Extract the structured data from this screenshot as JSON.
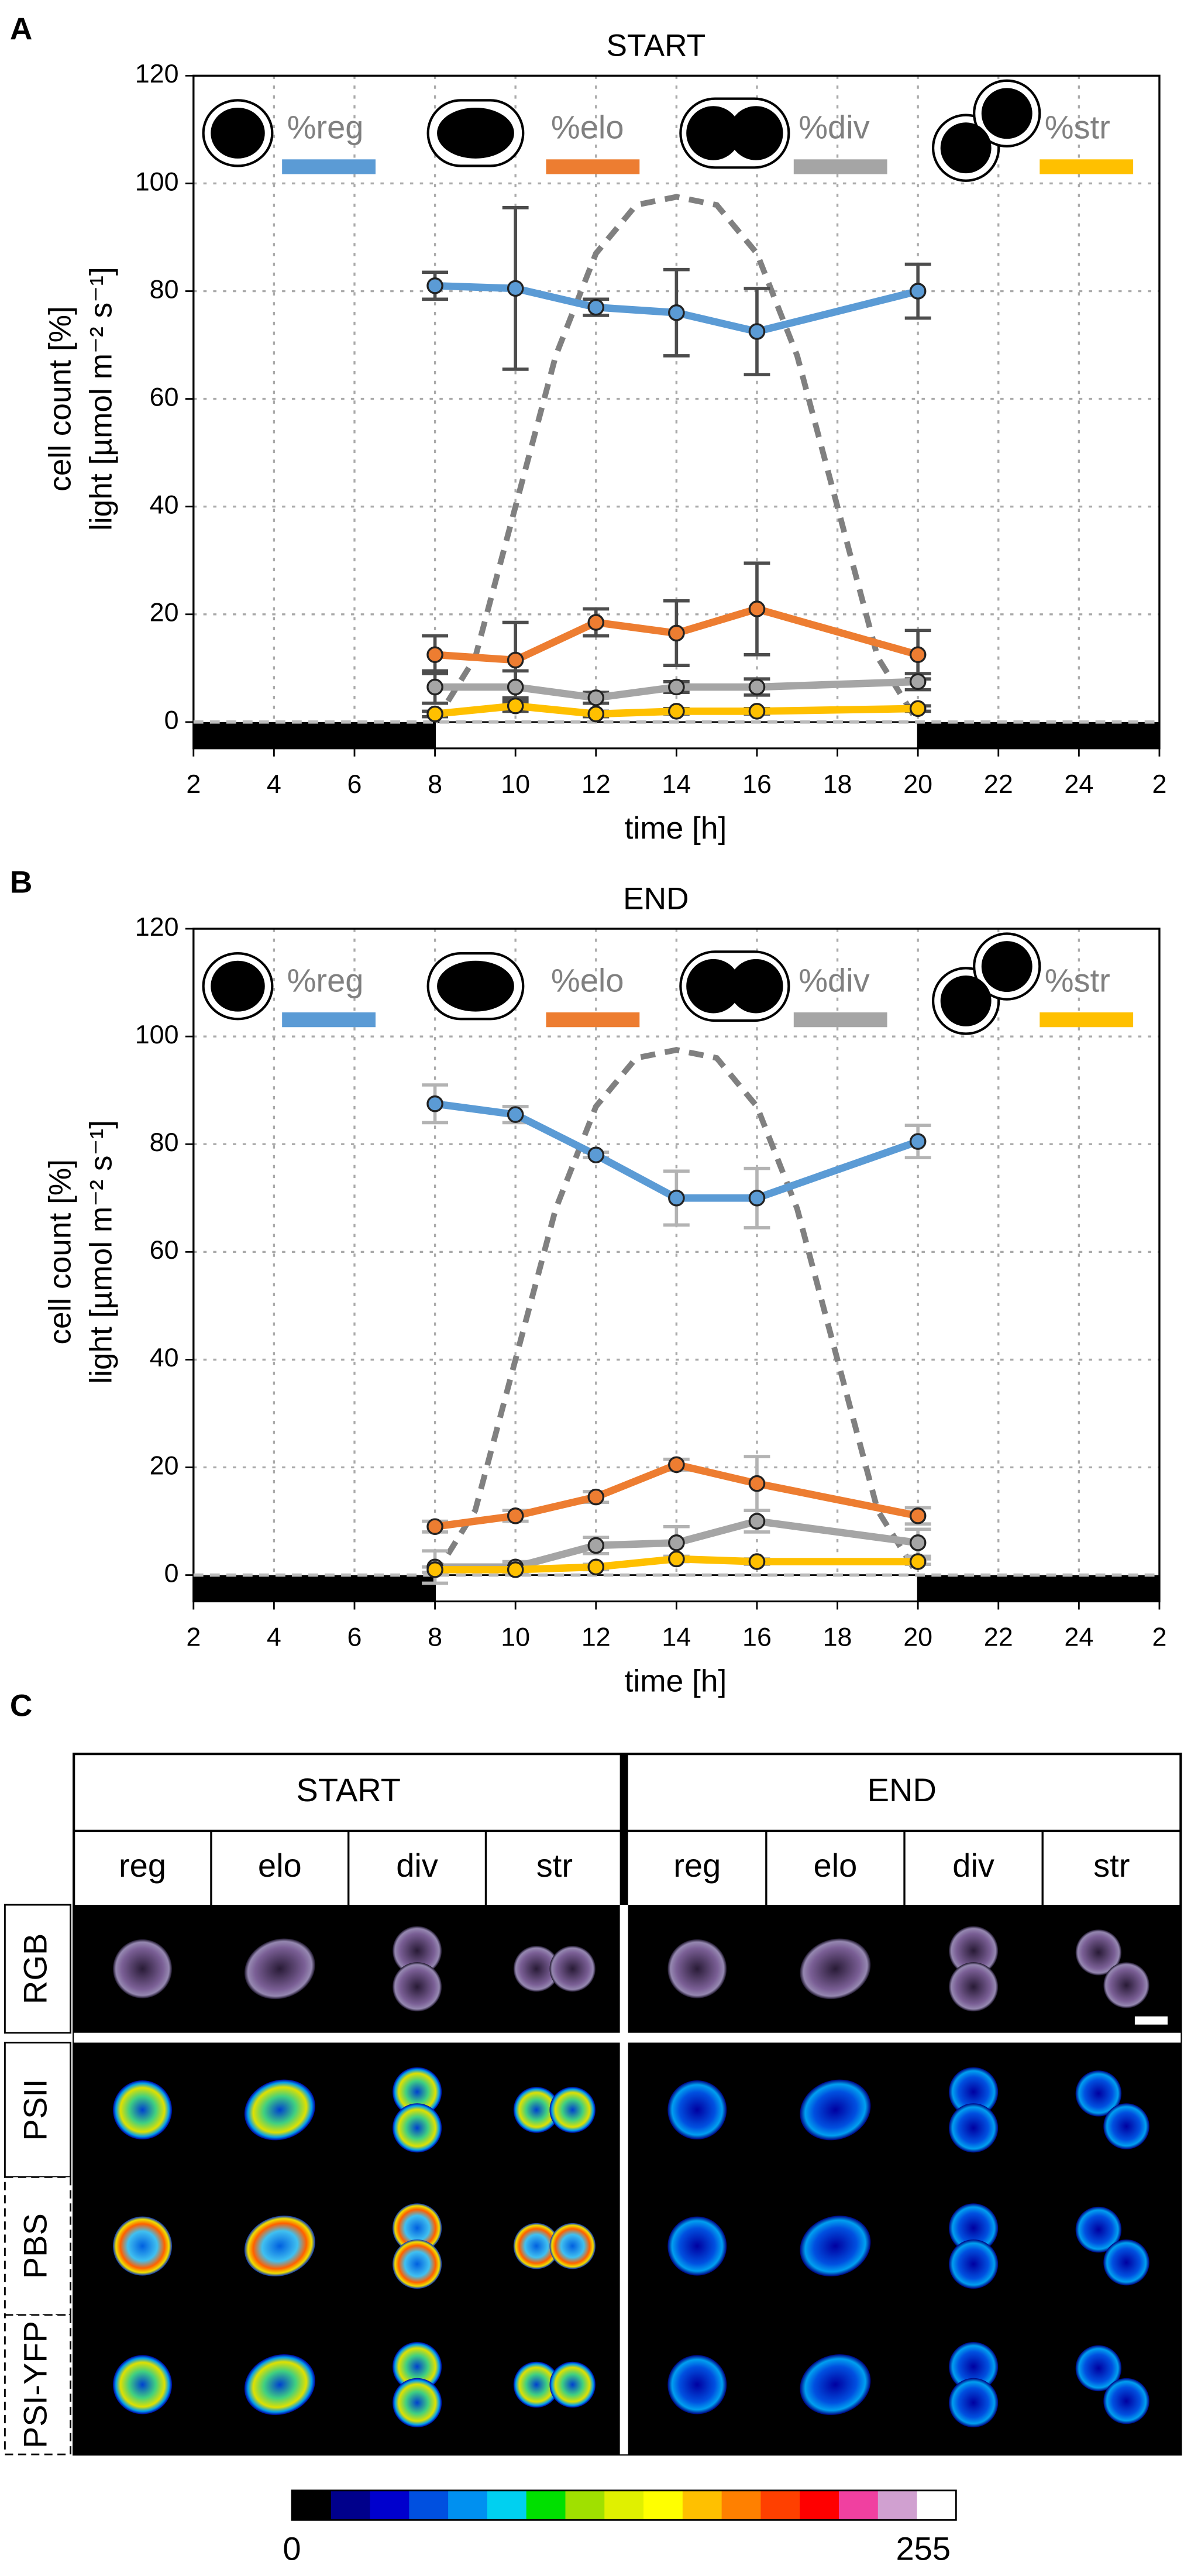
{
  "chart_data": [
    {
      "type": "line",
      "panel": "A",
      "title": "START",
      "xlabel": "time [h]",
      "ylabel": [
        "cell count [%]",
        "light [µmol m⁻² s⁻¹]"
      ],
      "xlim": [
        2,
        26
      ],
      "ylim": [
        0,
        120
      ],
      "xticks": [
        2,
        4,
        6,
        8,
        10,
        12,
        14,
        16,
        18,
        20,
        22,
        24,
        {
          "value": 26,
          "label": "2"
        }
      ],
      "yticks": [
        0,
        20,
        40,
        60,
        80,
        100,
        120
      ],
      "grid": true,
      "light_period": [
        8,
        20
      ],
      "errorbar_color": "#4d4d4d",
      "x": [
        8,
        10,
        12,
        14,
        16,
        20
      ],
      "series": [
        {
          "name": "%reg",
          "color": "#5b9bd5",
          "values": [
            81,
            80.5,
            77,
            76,
            72.5,
            80
          ],
          "errors": [
            2.5,
            15,
            1.5,
            8,
            8,
            5
          ]
        },
        {
          "name": "%elo",
          "color": "#ed7d31",
          "values": [
            12.5,
            11.5,
            18.5,
            16.5,
            21,
            12.5
          ],
          "errors": [
            3.5,
            7,
            2.5,
            6,
            8.5,
            4.5
          ]
        },
        {
          "name": "%div",
          "color": "#a5a5a5",
          "values": [
            6.5,
            6.5,
            4.5,
            6.5,
            6.5,
            7.5
          ],
          "errors": [
            3,
            3,
            1,
            1,
            1.5,
            1.5
          ]
        },
        {
          "name": "%str",
          "color": "#ffc000",
          "values": [
            1.5,
            3,
            1.5,
            2,
            2,
            2.5
          ],
          "errors": [
            0.5,
            1,
            0.5,
            0.5,
            0.5,
            0.5
          ]
        }
      ],
      "light": {
        "color": "#808080",
        "x": [
          8,
          9,
          10,
          11,
          12,
          13,
          14,
          15,
          16,
          17,
          18,
          19,
          20
        ],
        "values": [
          0,
          12,
          40,
          68,
          87,
          96,
          97.5,
          96,
          87,
          68,
          40,
          12,
          0
        ]
      }
    },
    {
      "type": "line",
      "panel": "B",
      "title": "END",
      "xlabel": "time [h]",
      "ylabel": [
        "cell count [%]",
        "light [µmol m⁻² s⁻¹]"
      ],
      "xlim": [
        2,
        26
      ],
      "ylim": [
        0,
        120
      ],
      "xticks": [
        2,
        4,
        6,
        8,
        10,
        12,
        14,
        16,
        18,
        20,
        22,
        24,
        {
          "value": 26,
          "label": "2"
        }
      ],
      "yticks": [
        0,
        20,
        40,
        60,
        80,
        100,
        120
      ],
      "grid": true,
      "light_period": [
        8,
        20
      ],
      "errorbar_color": "#b3b3b3",
      "x": [
        8,
        10,
        12,
        14,
        16,
        20
      ],
      "series": [
        {
          "name": "%reg",
          "color": "#5b9bd5",
          "values": [
            87.5,
            85.5,
            78,
            70,
            70,
            80.5
          ],
          "errors": [
            3.5,
            1.5,
            0.5,
            5,
            5.5,
            3
          ]
        },
        {
          "name": "%elo",
          "color": "#ed7d31",
          "values": [
            9,
            11,
            14.5,
            20.5,
            17,
            11
          ],
          "errors": [
            1,
            1,
            1,
            1,
            5,
            1.5
          ]
        },
        {
          "name": "%div",
          "color": "#a5a5a5",
          "values": [
            1.5,
            1.5,
            5.5,
            6,
            10,
            6
          ],
          "errors": [
            3,
            1,
            1.5,
            3,
            2,
            2.5
          ]
        },
        {
          "name": "%str",
          "color": "#ffc000",
          "values": [
            1,
            1,
            1.5,
            3,
            2.5,
            2.5
          ],
          "errors": [
            0.5,
            0.5,
            0.5,
            0.5,
            0.5,
            0.5
          ]
        }
      ],
      "light": {
        "color": "#808080",
        "x": [
          8,
          9,
          10,
          11,
          12,
          13,
          14,
          15,
          16,
          17,
          18,
          19,
          20
        ],
        "values": [
          0,
          12,
          40,
          68,
          87,
          96,
          97.5,
          96,
          87,
          68,
          40,
          12,
          0
        ]
      }
    }
  ],
  "panel_c": {
    "label": "C",
    "groups": [
      "START",
      "END"
    ],
    "columns": [
      "reg",
      "elo",
      "div",
      "str",
      "reg",
      "elo",
      "div",
      "str"
    ],
    "rows": [
      "RGB",
      "PSII",
      "PBS",
      "PSI-YFP"
    ],
    "colorbar": {
      "min": 0,
      "max": 255,
      "colors": [
        "#000000",
        "#00008b",
        "#0000cd",
        "#0050e0",
        "#0090f0",
        "#00d0f0",
        "#00e000",
        "#a0e000",
        "#e0f000",
        "#ffff00",
        "#ffc000",
        "#ff8000",
        "#ff4000",
        "#ff0000",
        "#f040a0",
        "#d0a0d0",
        "#ffffff"
      ]
    }
  }
}
